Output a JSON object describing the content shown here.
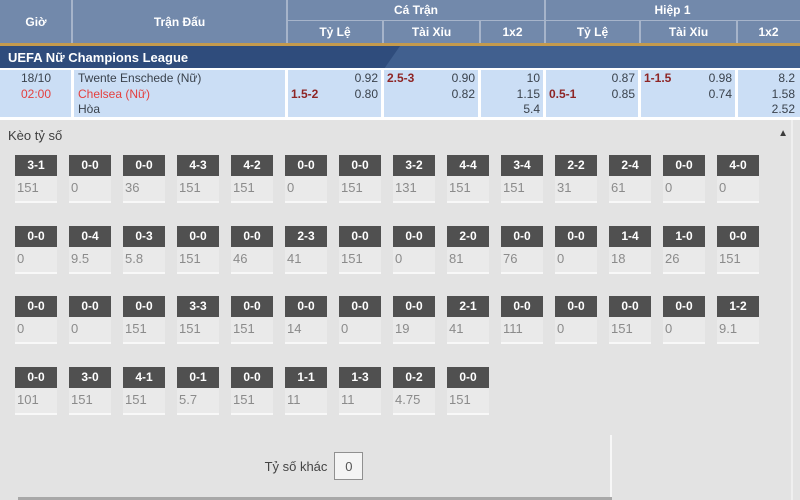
{
  "colors": {
    "header_blue": "#7289ab",
    "accent_orange": "#c49a4d",
    "league_navy": "#2f4c7c",
    "match_row_blue": "#cbdef5",
    "team_red": "#e4403f",
    "handicap_maroon": "#8e2525",
    "chip_dark": "#505050"
  },
  "header": {
    "col_time": "Giờ",
    "col_match": "Trận Đấu",
    "group_full_match": "Cá Trận",
    "group_first_half": "Hiệp 1",
    "sub_handicap": "Tỷ Lệ",
    "sub_over_under": "Tài Xỉu",
    "sub_1x2": "1x2"
  },
  "league": {
    "name": "UEFA Nữ Champions League"
  },
  "match": {
    "date": "18/10",
    "time": "02:00",
    "home": "Twente Enschede (Nữ)",
    "away": "Chelsea (Nữ)",
    "draw": "Hòa",
    "full": {
      "hdp_line": "1.5-2",
      "hdp_home": "0.92",
      "hdp_away": "0.80",
      "ou_line": "2.5-3",
      "ou_over": "0.90",
      "ou_under": "0.82",
      "x2_home": "10",
      "x2_away": "1.15",
      "x2_draw": "5.4"
    },
    "half": {
      "hdp_line": "0.5-1",
      "hdp_home": "0.87",
      "hdp_away": "0.85",
      "ou_line": "1-1.5",
      "ou_over": "0.98",
      "ou_under": "0.74",
      "x2_home": "8.2",
      "x2_away": "1.58",
      "x2_draw": "2.52"
    }
  },
  "score_section": {
    "title": "Kèo tỷ số",
    "collapse_icon": "▲",
    "rows": [
      [
        {
          "score": "3-1",
          "odds": "151"
        },
        {
          "score": "0-0",
          "odds": "0"
        },
        {
          "score": "0-0",
          "odds": "36"
        },
        {
          "score": "4-3",
          "odds": "151"
        },
        {
          "score": "4-2",
          "odds": "151"
        },
        {
          "score": "0-0",
          "odds": "0"
        },
        {
          "score": "0-0",
          "odds": "151"
        },
        {
          "score": "3-2",
          "odds": "131"
        },
        {
          "score": "4-4",
          "odds": "151"
        },
        {
          "score": "3-4",
          "odds": "151"
        },
        {
          "score": "2-2",
          "odds": "31"
        },
        {
          "score": "2-4",
          "odds": "61"
        },
        {
          "score": "0-0",
          "odds": "0"
        },
        {
          "score": "4-0",
          "odds": "0"
        }
      ],
      [
        {
          "score": "0-0",
          "odds": "0"
        },
        {
          "score": "0-4",
          "odds": "9.5"
        },
        {
          "score": "0-3",
          "odds": "5.8"
        },
        {
          "score": "0-0",
          "odds": "151"
        },
        {
          "score": "0-0",
          "odds": "46"
        },
        {
          "score": "2-3",
          "odds": "41"
        },
        {
          "score": "0-0",
          "odds": "151"
        },
        {
          "score": "0-0",
          "odds": "0"
        },
        {
          "score": "2-0",
          "odds": "81"
        },
        {
          "score": "0-0",
          "odds": "76"
        },
        {
          "score": "0-0",
          "odds": "0"
        },
        {
          "score": "1-4",
          "odds": "18"
        },
        {
          "score": "1-0",
          "odds": "26"
        },
        {
          "score": "0-0",
          "odds": "151"
        }
      ],
      [
        {
          "score": "0-0",
          "odds": "0"
        },
        {
          "score": "0-0",
          "odds": "0"
        },
        {
          "score": "0-0",
          "odds": "151"
        },
        {
          "score": "3-3",
          "odds": "151"
        },
        {
          "score": "0-0",
          "odds": "151"
        },
        {
          "score": "0-0",
          "odds": "14"
        },
        {
          "score": "0-0",
          "odds": "0"
        },
        {
          "score": "0-0",
          "odds": "19"
        },
        {
          "score": "2-1",
          "odds": "41"
        },
        {
          "score": "0-0",
          "odds": "111"
        },
        {
          "score": "0-0",
          "odds": "0"
        },
        {
          "score": "0-0",
          "odds": "151"
        },
        {
          "score": "0-0",
          "odds": "0"
        },
        {
          "score": "1-2",
          "odds": "9.1"
        }
      ],
      [
        {
          "score": "0-0",
          "odds": "101"
        },
        {
          "score": "3-0",
          "odds": "151"
        },
        {
          "score": "4-1",
          "odds": "151"
        },
        {
          "score": "0-1",
          "odds": "5.7"
        },
        {
          "score": "0-0",
          "odds": "151"
        },
        {
          "score": "1-1",
          "odds": "11"
        },
        {
          "score": "1-3",
          "odds": "11"
        },
        {
          "score": "0-2",
          "odds": "4.75"
        },
        {
          "score": "0-0",
          "odds": "151"
        }
      ]
    ],
    "other_score": {
      "label": "Tỷ số khác",
      "value": "0"
    }
  }
}
